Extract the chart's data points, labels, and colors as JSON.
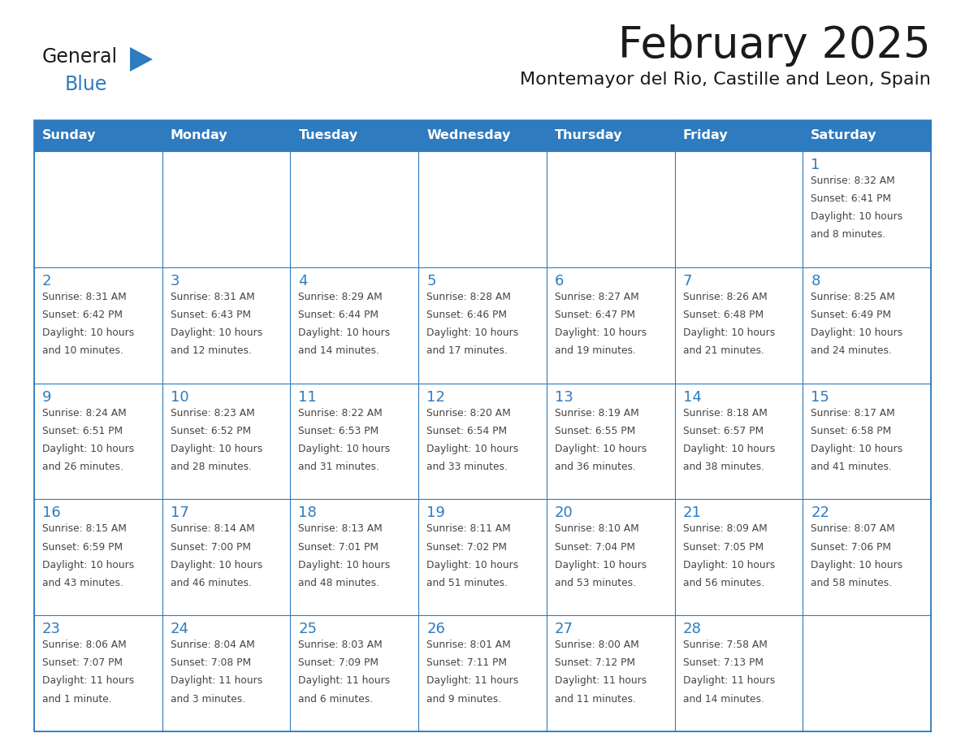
{
  "title": "February 2025",
  "subtitle": "Montemayor del Rio, Castille and Leon, Spain",
  "header_bg": "#2E7BBF",
  "header_text_color": "#FFFFFF",
  "border_color": "#2E7BBF",
  "title_color": "#1a1a1a",
  "subtitle_color": "#1a1a1a",
  "day_number_color": "#2E7BBF",
  "cell_text_color": "#444444",
  "days_of_week": [
    "Sunday",
    "Monday",
    "Tuesday",
    "Wednesday",
    "Thursday",
    "Friday",
    "Saturday"
  ],
  "calendar_data": [
    [
      null,
      null,
      null,
      null,
      null,
      null,
      {
        "day": 1,
        "sunrise": "8:32 AM",
        "sunset": "6:41 PM",
        "daylight": "10 hours",
        "daylight2": "and 8 minutes."
      }
    ],
    [
      {
        "day": 2,
        "sunrise": "8:31 AM",
        "sunset": "6:42 PM",
        "daylight": "10 hours",
        "daylight2": "and 10 minutes."
      },
      {
        "day": 3,
        "sunrise": "8:31 AM",
        "sunset": "6:43 PM",
        "daylight": "10 hours",
        "daylight2": "and 12 minutes."
      },
      {
        "day": 4,
        "sunrise": "8:29 AM",
        "sunset": "6:44 PM",
        "daylight": "10 hours",
        "daylight2": "and 14 minutes."
      },
      {
        "day": 5,
        "sunrise": "8:28 AM",
        "sunset": "6:46 PM",
        "daylight": "10 hours",
        "daylight2": "and 17 minutes."
      },
      {
        "day": 6,
        "sunrise": "8:27 AM",
        "sunset": "6:47 PM",
        "daylight": "10 hours",
        "daylight2": "and 19 minutes."
      },
      {
        "day": 7,
        "sunrise": "8:26 AM",
        "sunset": "6:48 PM",
        "daylight": "10 hours",
        "daylight2": "and 21 minutes."
      },
      {
        "day": 8,
        "sunrise": "8:25 AM",
        "sunset": "6:49 PM",
        "daylight": "10 hours",
        "daylight2": "and 24 minutes."
      }
    ],
    [
      {
        "day": 9,
        "sunrise": "8:24 AM",
        "sunset": "6:51 PM",
        "daylight": "10 hours",
        "daylight2": "and 26 minutes."
      },
      {
        "day": 10,
        "sunrise": "8:23 AM",
        "sunset": "6:52 PM",
        "daylight": "10 hours",
        "daylight2": "and 28 minutes."
      },
      {
        "day": 11,
        "sunrise": "8:22 AM",
        "sunset": "6:53 PM",
        "daylight": "10 hours",
        "daylight2": "and 31 minutes."
      },
      {
        "day": 12,
        "sunrise": "8:20 AM",
        "sunset": "6:54 PM",
        "daylight": "10 hours",
        "daylight2": "and 33 minutes."
      },
      {
        "day": 13,
        "sunrise": "8:19 AM",
        "sunset": "6:55 PM",
        "daylight": "10 hours",
        "daylight2": "and 36 minutes."
      },
      {
        "day": 14,
        "sunrise": "8:18 AM",
        "sunset": "6:57 PM",
        "daylight": "10 hours",
        "daylight2": "and 38 minutes."
      },
      {
        "day": 15,
        "sunrise": "8:17 AM",
        "sunset": "6:58 PM",
        "daylight": "10 hours",
        "daylight2": "and 41 minutes."
      }
    ],
    [
      {
        "day": 16,
        "sunrise": "8:15 AM",
        "sunset": "6:59 PM",
        "daylight": "10 hours",
        "daylight2": "and 43 minutes."
      },
      {
        "day": 17,
        "sunrise": "8:14 AM",
        "sunset": "7:00 PM",
        "daylight": "10 hours",
        "daylight2": "and 46 minutes."
      },
      {
        "day": 18,
        "sunrise": "8:13 AM",
        "sunset": "7:01 PM",
        "daylight": "10 hours",
        "daylight2": "and 48 minutes."
      },
      {
        "day": 19,
        "sunrise": "8:11 AM",
        "sunset": "7:02 PM",
        "daylight": "10 hours",
        "daylight2": "and 51 minutes."
      },
      {
        "day": 20,
        "sunrise": "8:10 AM",
        "sunset": "7:04 PM",
        "daylight": "10 hours",
        "daylight2": "and 53 minutes."
      },
      {
        "day": 21,
        "sunrise": "8:09 AM",
        "sunset": "7:05 PM",
        "daylight": "10 hours",
        "daylight2": "and 56 minutes."
      },
      {
        "day": 22,
        "sunrise": "8:07 AM",
        "sunset": "7:06 PM",
        "daylight": "10 hours",
        "daylight2": "and 58 minutes."
      }
    ],
    [
      {
        "day": 23,
        "sunrise": "8:06 AM",
        "sunset": "7:07 PM",
        "daylight": "11 hours",
        "daylight2": "and 1 minute."
      },
      {
        "day": 24,
        "sunrise": "8:04 AM",
        "sunset": "7:08 PM",
        "daylight": "11 hours",
        "daylight2": "and 3 minutes."
      },
      {
        "day": 25,
        "sunrise": "8:03 AM",
        "sunset": "7:09 PM",
        "daylight": "11 hours",
        "daylight2": "and 6 minutes."
      },
      {
        "day": 26,
        "sunrise": "8:01 AM",
        "sunset": "7:11 PM",
        "daylight": "11 hours",
        "daylight2": "and 9 minutes."
      },
      {
        "day": 27,
        "sunrise": "8:00 AM",
        "sunset": "7:12 PM",
        "daylight": "11 hours",
        "daylight2": "and 11 minutes."
      },
      {
        "day": 28,
        "sunrise": "7:58 AM",
        "sunset": "7:13 PM",
        "daylight": "11 hours",
        "daylight2": "and 14 minutes."
      },
      null
    ]
  ]
}
